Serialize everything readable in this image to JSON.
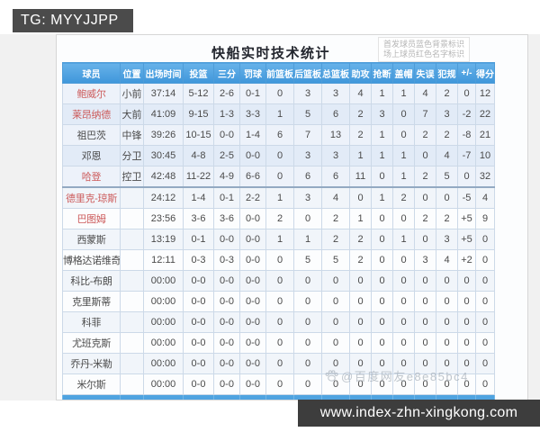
{
  "badge": {
    "text": "TG: MYYJJPP"
  },
  "panel": {
    "title": "快船实时技术统计",
    "legend_line1": "首发球员蓝色背景标识",
    "legend_line2": "场上球员红色名字标识"
  },
  "watermark": {
    "icon": "baidu-paw",
    "text": "@百度网友e8e85bc4"
  },
  "footer_bar": {
    "url": "www.index-zhn-xingkong.com"
  },
  "colors": {
    "header_blue_top": "#68b2e9",
    "header_blue_bottom": "#3e96da",
    "starter_row_light": "#edf2fa",
    "starter_row_dark": "#e2ebf7",
    "bench_row_light": "#fcfdfe",
    "bench_row_dark": "#f1f5fa",
    "on_court_name_red": "#cc5a5a",
    "totals_strip_blue": "#4fa3e0",
    "badge_bg": "#4b4b4b",
    "url_bar_bg": "#3d3d3d"
  },
  "table": {
    "columns": [
      "球员",
      "位置",
      "出场时间",
      "投篮",
      "三分",
      "罚球",
      "前篮板",
      "后篮板",
      "总篮板",
      "助攻",
      "抢断",
      "盖帽",
      "失误",
      "犯规",
      "+/-",
      "得分"
    ],
    "rows": [
      {
        "name": "鲍威尔",
        "starter": true,
        "on_court": true,
        "cells": [
          "小前",
          "37:14",
          "5-12",
          "2-6",
          "0-1",
          "0",
          "3",
          "3",
          "4",
          "1",
          "1",
          "4",
          "2",
          "0",
          "12"
        ]
      },
      {
        "name": "莱昂纳德",
        "starter": true,
        "on_court": true,
        "cells": [
          "大前",
          "41:09",
          "9-15",
          "1-3",
          "3-3",
          "1",
          "5",
          "6",
          "2",
          "3",
          "0",
          "7",
          "3",
          "-2",
          "22"
        ]
      },
      {
        "name": "祖巴茨",
        "starter": true,
        "on_court": false,
        "cells": [
          "中锋",
          "39:26",
          "10-15",
          "0-0",
          "1-4",
          "6",
          "7",
          "13",
          "2",
          "1",
          "0",
          "2",
          "2",
          "-8",
          "21"
        ]
      },
      {
        "name": "邓恩",
        "starter": true,
        "on_court": false,
        "cells": [
          "分卫",
          "30:45",
          "4-8",
          "2-5",
          "0-0",
          "0",
          "3",
          "3",
          "1",
          "1",
          "1",
          "0",
          "4",
          "-7",
          "10"
        ]
      },
      {
        "name": "哈登",
        "starter": true,
        "on_court": true,
        "cells": [
          "控卫",
          "42:48",
          "11-22",
          "4-9",
          "6-6",
          "0",
          "6",
          "6",
          "11",
          "0",
          "1",
          "2",
          "5",
          "0",
          "32"
        ]
      },
      {
        "name": "德里克-琼斯",
        "starter": false,
        "on_court": true,
        "cells": [
          "",
          "24:12",
          "1-4",
          "0-1",
          "2-2",
          "1",
          "3",
          "4",
          "0",
          "1",
          "2",
          "0",
          "0",
          "-5",
          "4"
        ]
      },
      {
        "name": "巴图姆",
        "starter": false,
        "on_court": true,
        "cells": [
          "",
          "23:56",
          "3-6",
          "3-6",
          "0-0",
          "2",
          "0",
          "2",
          "1",
          "0",
          "0",
          "2",
          "2",
          "+5",
          "9"
        ]
      },
      {
        "name": "西蒙斯",
        "starter": false,
        "on_court": false,
        "cells": [
          "",
          "13:19",
          "0-1",
          "0-0",
          "0-0",
          "1",
          "1",
          "2",
          "2",
          "0",
          "1",
          "0",
          "3",
          "+5",
          "0"
        ]
      },
      {
        "name": "博格达诺维奇",
        "starter": false,
        "on_court": false,
        "cells": [
          "",
          "12:11",
          "0-3",
          "0-3",
          "0-0",
          "0",
          "5",
          "5",
          "2",
          "0",
          "0",
          "3",
          "4",
          "+2",
          "0"
        ]
      },
      {
        "name": "科比-布朗",
        "starter": false,
        "on_court": false,
        "cells": [
          "",
          "00:00",
          "0-0",
          "0-0",
          "0-0",
          "0",
          "0",
          "0",
          "0",
          "0",
          "0",
          "0",
          "0",
          "0",
          "0"
        ]
      },
      {
        "name": "克里斯蒂",
        "starter": false,
        "on_court": false,
        "cells": [
          "",
          "00:00",
          "0-0",
          "0-0",
          "0-0",
          "0",
          "0",
          "0",
          "0",
          "0",
          "0",
          "0",
          "0",
          "0",
          "0"
        ]
      },
      {
        "name": "科菲",
        "starter": false,
        "on_court": false,
        "cells": [
          "",
          "00:00",
          "0-0",
          "0-0",
          "0-0",
          "0",
          "0",
          "0",
          "0",
          "0",
          "0",
          "0",
          "0",
          "0",
          "0"
        ]
      },
      {
        "name": "尤班克斯",
        "starter": false,
        "on_court": false,
        "cells": [
          "",
          "00:00",
          "0-0",
          "0-0",
          "0-0",
          "0",
          "0",
          "0",
          "0",
          "0",
          "0",
          "0",
          "0",
          "0",
          "0"
        ]
      },
      {
        "name": "乔丹-米勒",
        "starter": false,
        "on_court": false,
        "cells": [
          "",
          "00:00",
          "0-0",
          "0-0",
          "0-0",
          "0",
          "0",
          "0",
          "0",
          "0",
          "0",
          "0",
          "0",
          "0",
          "0"
        ]
      },
      {
        "name": "米尔斯",
        "starter": false,
        "on_court": false,
        "cells": [
          "",
          "00:00",
          "0-0",
          "0-0",
          "0-0",
          "0",
          "0",
          "0",
          "0",
          "0",
          "0",
          "0",
          "0",
          "0",
          "0"
        ]
      }
    ]
  }
}
